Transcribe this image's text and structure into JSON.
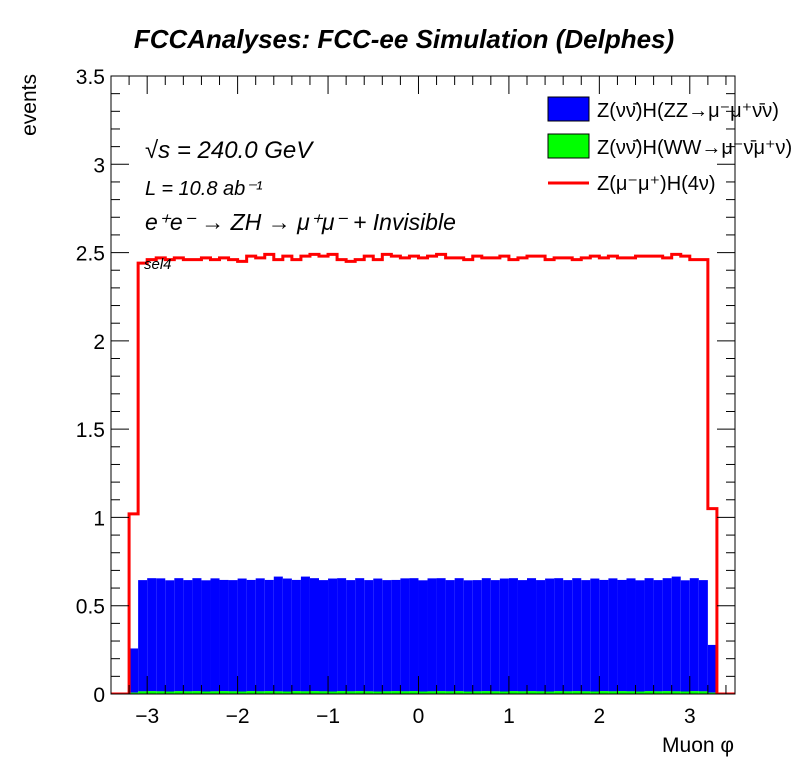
{
  "chart_data": {
    "type": "histogram",
    "title": "FCCAnalyses: FCC-ee Simulation (Delphes)",
    "xlabel": "Muon φ",
    "ylabel": "events",
    "xlim": [
      -3.4,
      3.5
    ],
    "ylim": [
      0,
      3.5
    ],
    "x_ticks": [
      -3,
      -2,
      -1,
      0,
      1,
      2,
      3
    ],
    "x_tick_labels": [
      "−3",
      "−2",
      "−1",
      "0",
      "1",
      "2",
      "3"
    ],
    "y_ticks": [
      0,
      0.5,
      1,
      1.5,
      2,
      2.5,
      3,
      3.5
    ],
    "y_tick_labels": [
      "0",
      "0.5",
      "1",
      "1.5",
      "2",
      "2.5",
      "3",
      "3.5"
    ],
    "annotations": {
      "sqrt_s": "√s = 240.0 GeV",
      "lumi": "L = 10.8 ab⁻¹",
      "process": "e⁺e⁻ → ZH → μ⁺μ⁻ + Invisible",
      "selection": "sel4"
    },
    "bins": {
      "start": -3.2,
      "width": 0.1,
      "count": 65
    },
    "series": [
      {
        "name": "Z(νν̄)H(ZZ→μ⁻μ⁺ν̄ν)",
        "style": "stacked-fill",
        "color": "#0000ff",
        "values": [
          0.25,
          0.63,
          0.64,
          0.64,
          0.63,
          0.64,
          0.63,
          0.64,
          0.63,
          0.64,
          0.63,
          0.63,
          0.64,
          0.63,
          0.64,
          0.63,
          0.65,
          0.64,
          0.63,
          0.65,
          0.64,
          0.63,
          0.64,
          0.64,
          0.63,
          0.64,
          0.63,
          0.64,
          0.63,
          0.63,
          0.64,
          0.64,
          0.63,
          0.64,
          0.64,
          0.63,
          0.64,
          0.63,
          0.63,
          0.64,
          0.63,
          0.64,
          0.64,
          0.63,
          0.64,
          0.63,
          0.64,
          0.64,
          0.63,
          0.64,
          0.63,
          0.64,
          0.63,
          0.64,
          0.63,
          0.64,
          0.63,
          0.64,
          0.63,
          0.64,
          0.65,
          0.63,
          0.64,
          0.63,
          0.27
        ]
      },
      {
        "name": "Z(νν̄)H(WW→μ⁻ν̄μ⁺ν)",
        "style": "stacked-fill",
        "color": "#00ff00",
        "values": [
          0.008,
          0.015,
          0.016,
          0.015,
          0.014,
          0.016,
          0.015,
          0.016,
          0.014,
          0.015,
          0.016,
          0.015,
          0.014,
          0.016,
          0.015,
          0.016,
          0.015,
          0.014,
          0.016,
          0.015,
          0.016,
          0.015,
          0.014,
          0.016,
          0.015,
          0.016,
          0.015,
          0.014,
          0.015,
          0.016,
          0.015,
          0.016,
          0.014,
          0.015,
          0.016,
          0.015,
          0.016,
          0.014,
          0.015,
          0.016,
          0.015,
          0.014,
          0.016,
          0.015,
          0.016,
          0.015,
          0.014,
          0.016,
          0.015,
          0.016,
          0.015,
          0.014,
          0.016,
          0.015,
          0.016,
          0.015,
          0.014,
          0.016,
          0.015,
          0.016,
          0.015,
          0.014,
          0.016,
          0.015,
          0.008
        ]
      },
      {
        "name": "Z(μ⁻μ⁺)H(4ν)",
        "style": "line",
        "color": "#ff0000",
        "values": [
          1.02,
          2.44,
          2.46,
          2.47,
          2.46,
          2.47,
          2.46,
          2.46,
          2.47,
          2.46,
          2.47,
          2.46,
          2.45,
          2.48,
          2.47,
          2.49,
          2.46,
          2.48,
          2.46,
          2.48,
          2.49,
          2.48,
          2.49,
          2.46,
          2.45,
          2.46,
          2.48,
          2.46,
          2.49,
          2.48,
          2.47,
          2.48,
          2.47,
          2.48,
          2.49,
          2.47,
          2.47,
          2.46,
          2.48,
          2.47,
          2.47,
          2.48,
          2.46,
          2.47,
          2.48,
          2.48,
          2.46,
          2.47,
          2.47,
          2.46,
          2.47,
          2.48,
          2.47,
          2.48,
          2.47,
          2.47,
          2.48,
          2.48,
          2.48,
          2.47,
          2.49,
          2.48,
          2.46,
          2.46,
          1.05
        ]
      }
    ],
    "legend_position": "top-right"
  }
}
